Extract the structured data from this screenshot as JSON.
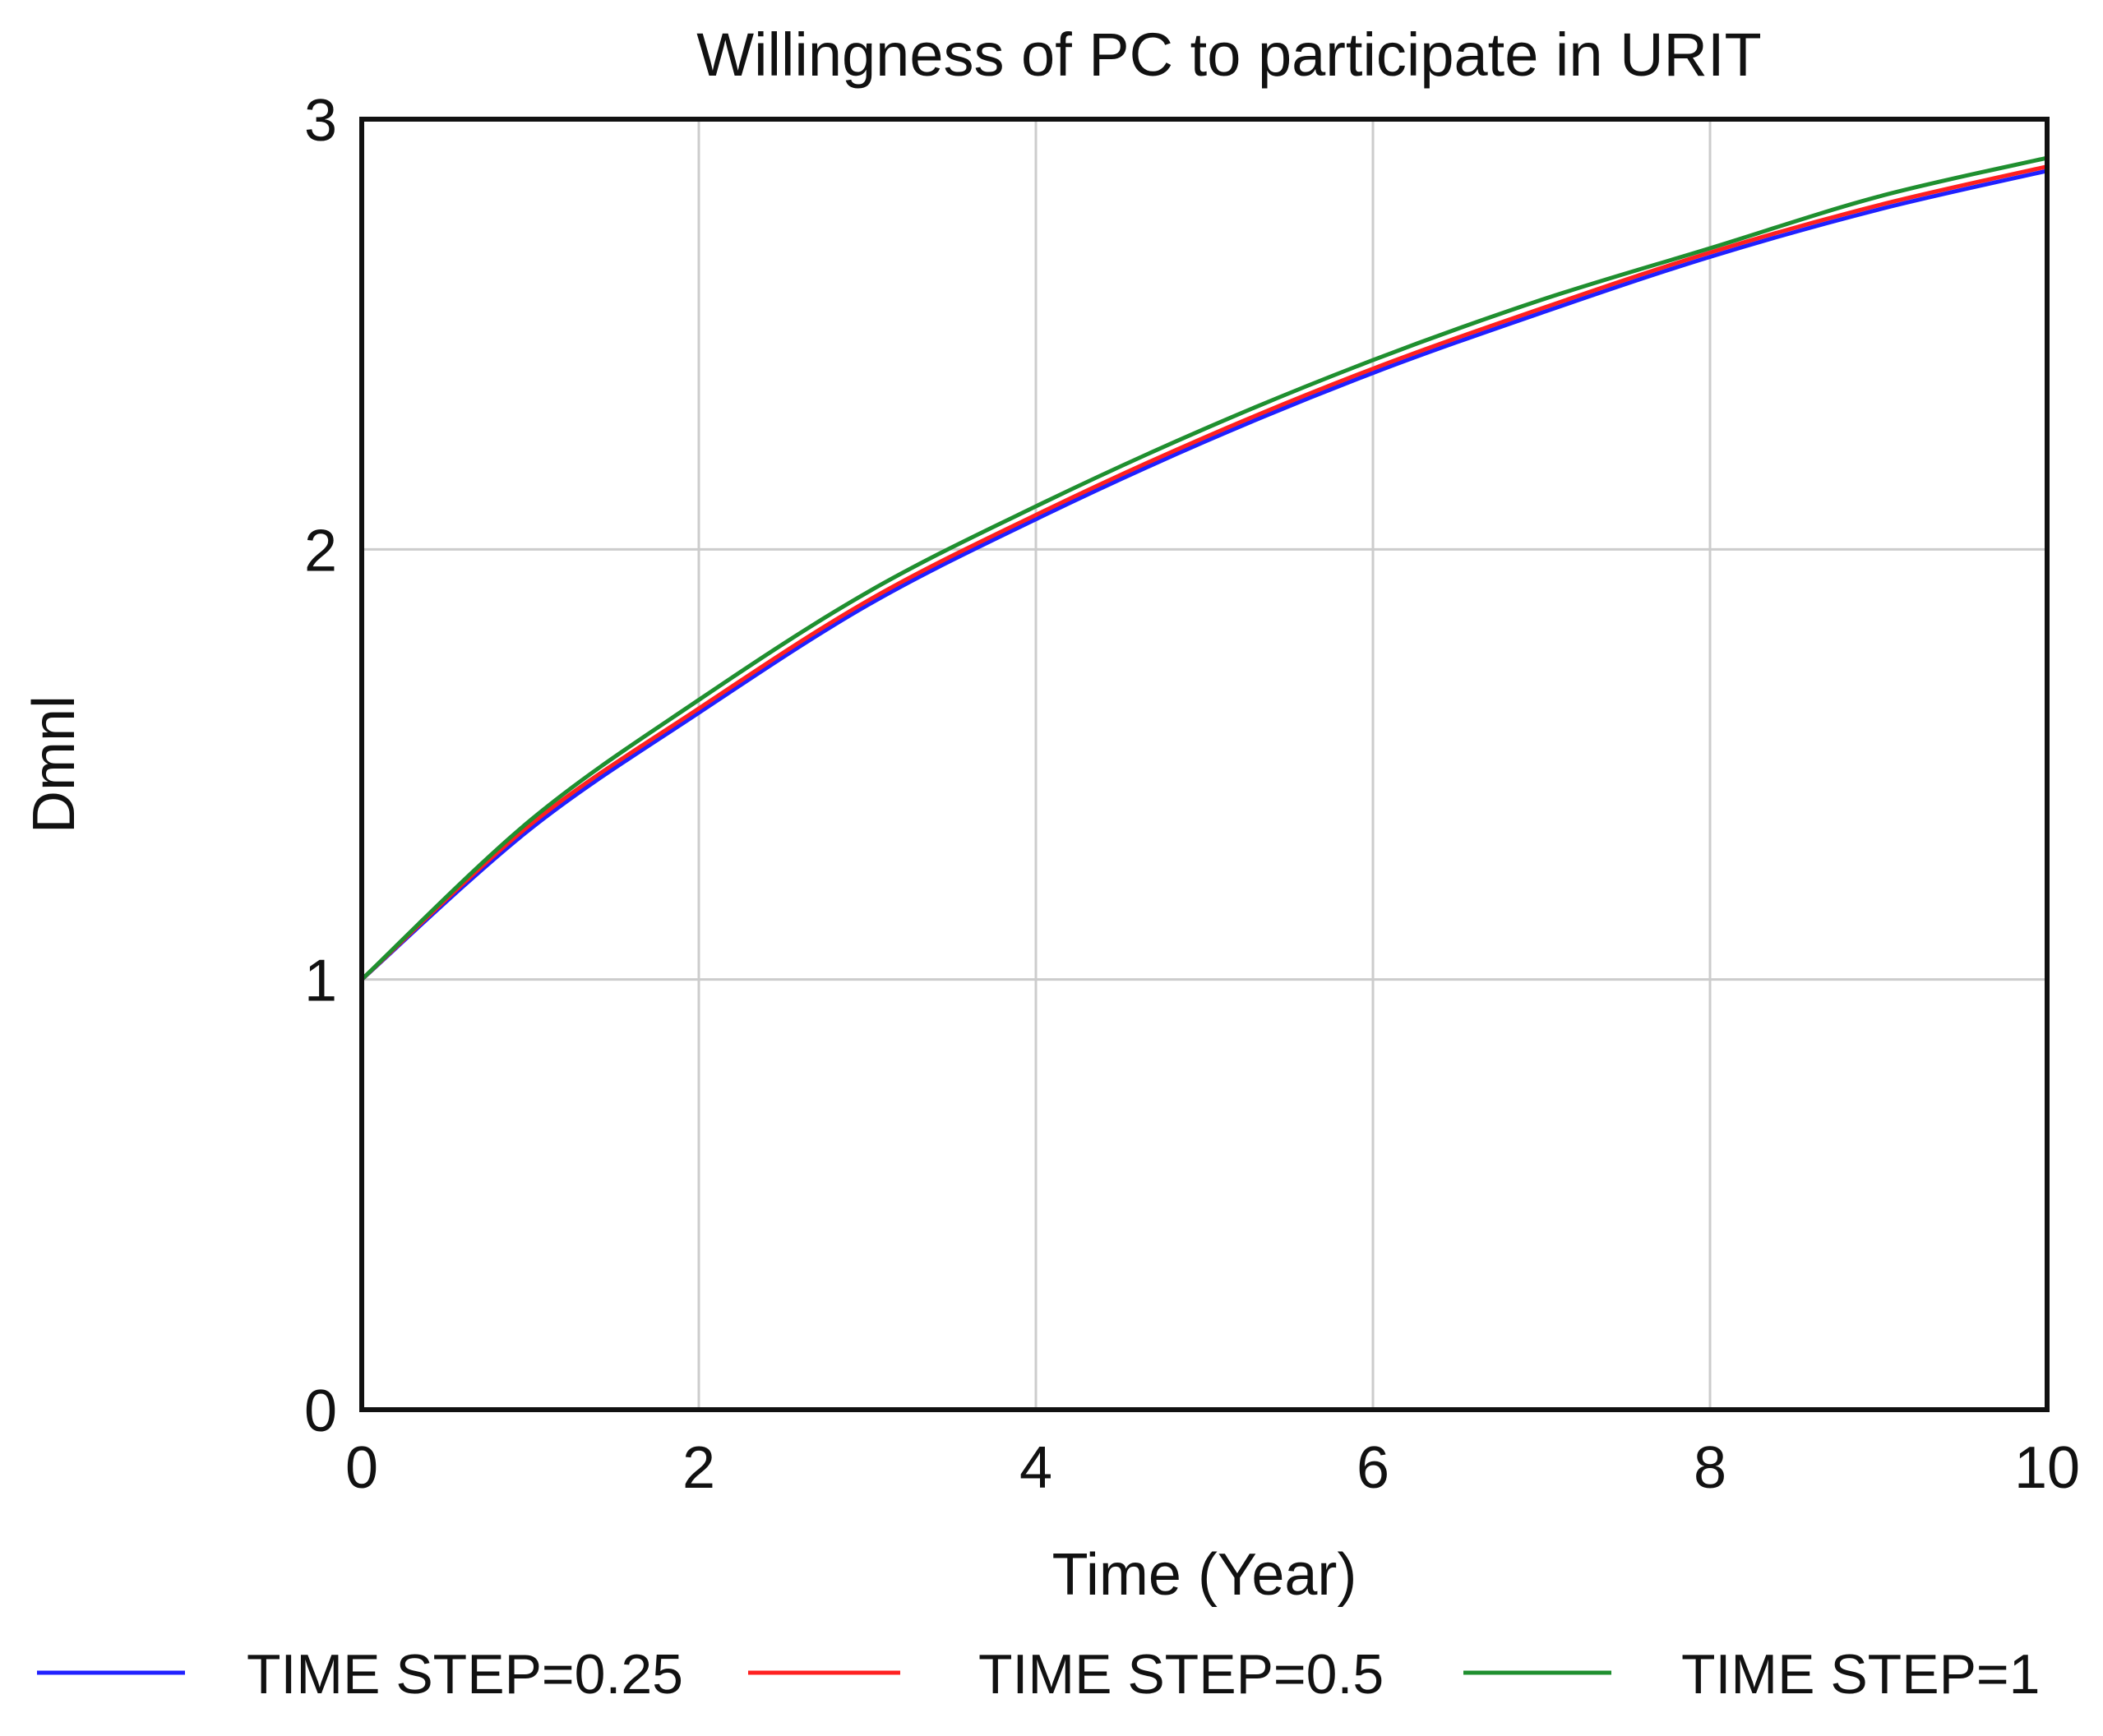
{
  "colors": {
    "grid": "#cccccc",
    "frame": "#111111",
    "text": "#111111",
    "series_time_step_0_25": "#2020ff",
    "series_time_step_0_5": "#ff2020",
    "series_time_step_1": "#1f8f2f"
  },
  "chart_data": {
    "type": "line",
    "title": "Willingness of PC to participate in URIT",
    "xlabel": "Time (Year)",
    "ylabel": "Dmnl",
    "xlim": [
      0,
      10
    ],
    "ylim": [
      0,
      3
    ],
    "grid": true,
    "legend_position": "bottom",
    "x_ticks": [
      "0",
      "2",
      "4",
      "6",
      "8",
      "10"
    ],
    "y_ticks": [
      "0",
      "1",
      "2",
      "3"
    ],
    "x": [
      0,
      1,
      2,
      3,
      4,
      5,
      6,
      7,
      8,
      9,
      10
    ],
    "series": [
      {
        "name": "TIME STEP=0.25",
        "color": "#2020ff",
        "values": [
          1.0,
          1.35,
          1.62,
          1.87,
          2.07,
          2.25,
          2.41,
          2.55,
          2.68,
          2.79,
          2.88
        ]
      },
      {
        "name": "TIME STEP=0.5",
        "color": "#ff2020",
        "values": [
          1.0,
          1.36,
          1.63,
          1.88,
          2.08,
          2.26,
          2.42,
          2.56,
          2.69,
          2.8,
          2.89
        ]
      },
      {
        "name": "TIME STEP=1",
        "color": "#1f8f2f",
        "values": [
          1.0,
          1.37,
          1.65,
          1.9,
          2.1,
          2.28,
          2.44,
          2.58,
          2.7,
          2.82,
          2.91
        ]
      }
    ]
  }
}
